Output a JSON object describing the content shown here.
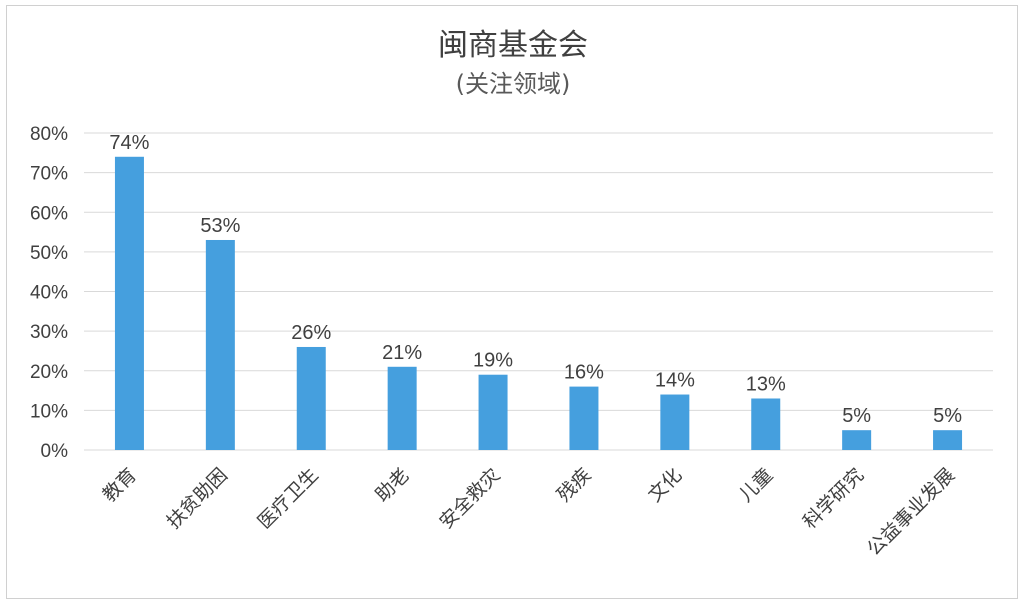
{
  "chart_data": {
    "type": "bar",
    "title": "闽商基金会",
    "subtitle": "(关注领域)",
    "categories": [
      "教育",
      "扶贫助困",
      "医疗卫生",
      "助老",
      "安全救灾",
      "残疾",
      "文化",
      "儿童",
      "科学研究",
      "公益事业发展"
    ],
    "values": [
      74,
      53,
      26,
      21,
      19,
      16,
      14,
      13,
      5,
      5
    ],
    "data_labels": [
      "74%",
      "53%",
      "26%",
      "21%",
      "19%",
      "16%",
      "14%",
      "13%",
      "5%",
      "5%"
    ],
    "y_ticks": [
      "0%",
      "10%",
      "20%",
      "30%",
      "40%",
      "50%",
      "60%",
      "70%",
      "80%"
    ],
    "ylim": [
      0,
      80
    ],
    "grid": true,
    "legend": "none",
    "bar_color": "#459FDE",
    "grid_color": "#d9d9d9"
  }
}
